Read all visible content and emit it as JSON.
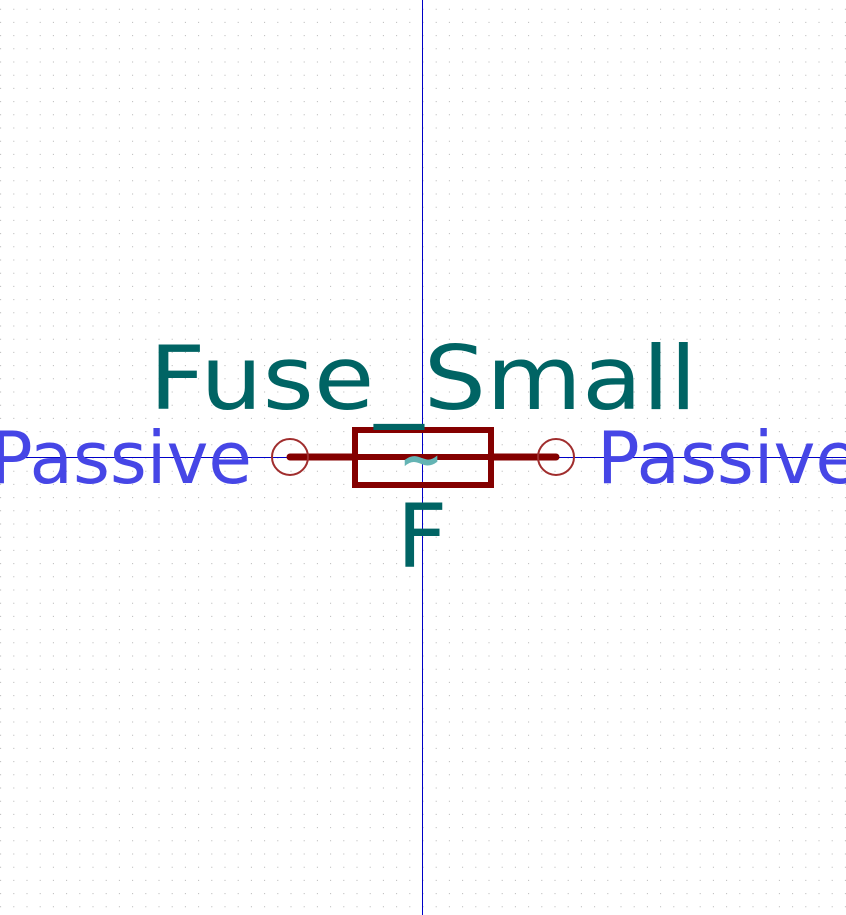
{
  "symbol": {
    "value_text": "Fuse_Small",
    "reference_text": "F",
    "body_marker": "~"
  },
  "pins": [
    {
      "electrical_type": "Passive",
      "side": "left"
    },
    {
      "electrical_type": "Passive",
      "side": "right"
    }
  ],
  "colors": {
    "background": "#ffffff",
    "grid_dot": "#b4b4b4",
    "axis": "#0000c8",
    "body": "#840000",
    "pin_wire": "#840000",
    "pin_end": "#a02d2d",
    "field_text": "#006464",
    "pin_type_text": "#4646e6",
    "marker": "#64b4b4"
  }
}
